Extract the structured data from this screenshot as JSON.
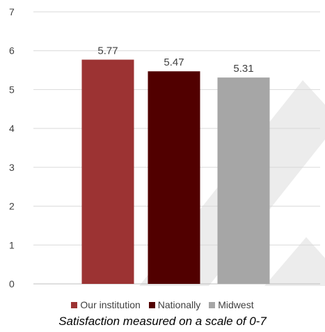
{
  "chart_data": {
    "type": "bar",
    "categories": [
      "Our institution",
      "Nationally",
      "Midwest"
    ],
    "values": [
      5.77,
      5.47,
      5.31
    ],
    "value_labels": [
      "5.77",
      "5.47",
      "5.31"
    ],
    "colors": [
      "#9c3333",
      "#510000",
      "#a6a6a6"
    ],
    "ylim": [
      0,
      7
    ],
    "yticks": [
      "0",
      "1",
      "2",
      "3",
      "4",
      "5",
      "6",
      "7"
    ],
    "grid": true,
    "legend_position": "bottom",
    "caption": "Satisfaction measured on a scale of 0-7"
  }
}
